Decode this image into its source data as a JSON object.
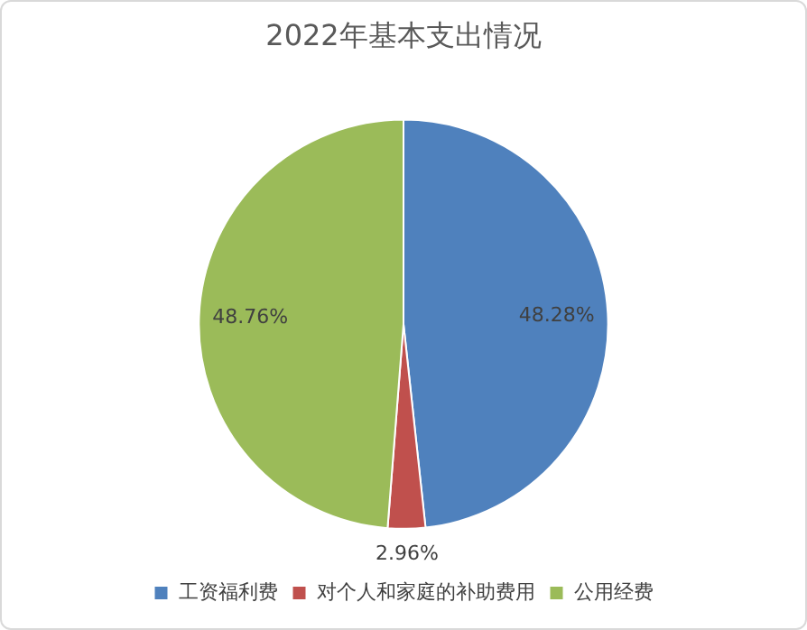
{
  "chart_data": {
    "type": "pie",
    "title": "2022年基本支出情况",
    "categories": [
      "工资福利费",
      "对个人和家庭的补助费用",
      "公用经费"
    ],
    "values": [
      48.28,
      2.96,
      48.76
    ],
    "colors": [
      "#4f81bd",
      "#c0504d",
      "#9bbb59"
    ],
    "value_labels": [
      "48.28%",
      "2.96%",
      "48.76%"
    ],
    "legend": "bottom"
  }
}
